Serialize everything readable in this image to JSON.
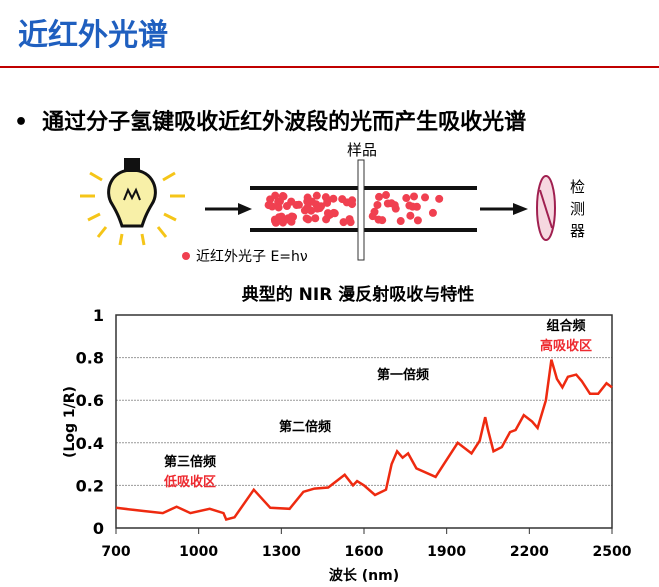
{
  "slide": {
    "title": "近红外光谱",
    "bullet": "通过分子氢键吸收近红外波段的光而产生吸收光谱"
  },
  "diagram": {
    "sample_label": "样品",
    "detector_label": [
      "检",
      "测",
      "器"
    ],
    "legend_label": "近红外光子 E=hν",
    "photon_color": "#f04050"
  },
  "chart_data": {
    "type": "line",
    "title": "典型的 NIR 漫反射吸收与特性",
    "xlabel": "波长 (nm)",
    "ylabel": "(Log 1/R)",
    "xlim": [
      700,
      2500
    ],
    "ylim": [
      0,
      1
    ],
    "xticks": [
      "700",
      "1000",
      "1300",
      "1600",
      "1900",
      "2200",
      "2500"
    ],
    "yticks": [
      "0",
      "0.2",
      "0.4",
      "0.6",
      "0.8",
      "1"
    ],
    "grid": true,
    "line_color": "#ee2a10",
    "annotations": {
      "third": "第三倍频",
      "low": "低吸收区",
      "second": "第二倍频",
      "first": "第一倍频",
      "combo": "组合频",
      "high": "高吸收区"
    },
    "x": [
      700,
      800,
      870,
      920,
      970,
      1040,
      1090,
      1100,
      1130,
      1200,
      1260,
      1330,
      1380,
      1420,
      1470,
      1530,
      1560,
      1575,
      1600,
      1640,
      1680,
      1700,
      1720,
      1740,
      1760,
      1790,
      1860,
      1890,
      1940,
      1990,
      2020,
      2040,
      2050,
      2070,
      2100,
      2130,
      2150,
      2180,
      2210,
      2230,
      2260,
      2280,
      2300,
      2320,
      2340,
      2370,
      2390,
      2420,
      2450,
      2480,
      2500
    ],
    "y": [
      0.095,
      0.08,
      0.07,
      0.1,
      0.07,
      0.09,
      0.07,
      0.04,
      0.05,
      0.18,
      0.095,
      0.09,
      0.17,
      0.185,
      0.19,
      0.25,
      0.2,
      0.22,
      0.2,
      0.155,
      0.18,
      0.3,
      0.36,
      0.33,
      0.35,
      0.28,
      0.24,
      0.3,
      0.4,
      0.35,
      0.41,
      0.52,
      0.46,
      0.36,
      0.38,
      0.45,
      0.46,
      0.53,
      0.5,
      0.47,
      0.6,
      0.79,
      0.7,
      0.66,
      0.71,
      0.72,
      0.69,
      0.63,
      0.63,
      0.68,
      0.66
    ]
  }
}
